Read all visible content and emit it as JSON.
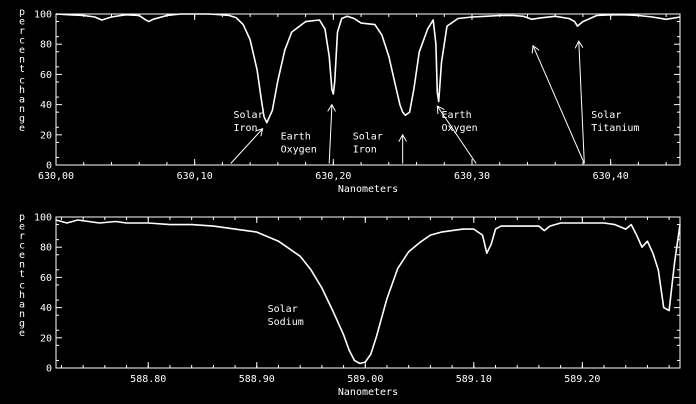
{
  "colors": {
    "background": "#000000",
    "foreground": "#ffffff"
  },
  "chart_data": [
    {
      "type": "line",
      "xlabel": "Nanometers",
      "ylabel_lines": [
        "Percent",
        "Change"
      ],
      "xlim": [
        630.0,
        630.45
      ],
      "ylim": [
        0,
        100
      ],
      "x_ticks": [
        630.0,
        630.1,
        630.2,
        630.3,
        630.4
      ],
      "x_tick_labels": [
        "630,00",
        "630,10",
        "630,20",
        "630,30",
        "630,40"
      ],
      "y_ticks": [
        0,
        20,
        40,
        60,
        80,
        100
      ],
      "y_tick_labels": [
        "0",
        "20",
        "40",
        "60",
        "80",
        "100"
      ],
      "series": [
        {
          "x": [
            630.0,
            630.01,
            630.02,
            630.028,
            630.033,
            630.04,
            630.05,
            630.06,
            630.064,
            630.067,
            630.07,
            630.08,
            630.09,
            630.1,
            630.11,
            630.12,
            630.125,
            630.13,
            630.135,
            630.14,
            630.145,
            630.148,
            630.15,
            630.152,
            630.156,
            630.16,
            630.165,
            630.17,
            630.18,
            630.19,
            630.194,
            630.197,
            630.199,
            630.2,
            630.201,
            630.203,
            630.206,
            630.21,
            630.215,
            630.22,
            630.23,
            630.235,
            630.24,
            630.245,
            630.248,
            630.25,
            630.252,
            630.255,
            630.258,
            630.262,
            630.268,
            630.272,
            630.274,
            630.275,
            630.276,
            630.278,
            630.282,
            630.29,
            630.3,
            630.31,
            630.32,
            630.33,
            630.337,
            630.343,
            630.35,
            630.36,
            630.37,
            630.374,
            630.376,
            630.38,
            630.39,
            630.4,
            630.41,
            630.42,
            630.43,
            630.44,
            630.45
          ],
          "y": [
            100,
            99.5,
            99,
            98,
            96,
            98,
            99.5,
            99,
            96.5,
            95,
            96.5,
            99,
            100,
            100,
            100,
            99.5,
            99,
            97.5,
            93,
            83,
            63,
            44,
            32,
            28,
            36,
            56,
            76,
            88,
            95,
            96,
            90,
            72,
            50,
            47,
            55,
            88,
            97,
            98.5,
            97,
            94,
            93,
            86,
            72,
            52,
            40,
            35,
            33,
            35,
            50,
            75,
            90,
            96,
            80,
            48,
            42,
            68,
            92,
            97,
            98,
            98.5,
            99,
            99,
            98.5,
            96.5,
            97.5,
            98.5,
            97,
            95,
            92,
            95,
            99,
            99.5,
            99.5,
            99,
            98,
            96.5,
            98
          ]
        }
      ],
      "annotations": [
        {
          "lines": [
            "Solar",
            "Iron"
          ],
          "x": 630.128,
          "y": 31,
          "arrow_from": [
            630.126,
            1
          ],
          "arrow_to": [
            630.149,
            24
          ]
        },
        {
          "lines": [
            "Earth",
            "Oxygen"
          ],
          "x": 630.162,
          "y": 17,
          "arrow_from": [
            630.197,
            1
          ],
          "arrow_to": [
            630.199,
            40
          ]
        },
        {
          "lines": [
            "Solar",
            "Iron"
          ],
          "x": 630.214,
          "y": 17,
          "arrow_from": [
            630.25,
            1
          ],
          "arrow_to": [
            630.25,
            20
          ]
        },
        {
          "lines": [
            "Earth",
            "Oxygen"
          ],
          "x": 630.278,
          "y": 31,
          "arrow_from": [
            630.303,
            1
          ],
          "arrow_to": [
            630.275,
            39
          ]
        },
        {
          "lines": [
            "Solar",
            "Titanium"
          ],
          "x": 630.386,
          "y": 31,
          "arrow_from": [
            630.381,
            1
          ],
          "arrow_to": [
            630.344,
            79
          ]
        },
        {
          "lines": [],
          "arrow_from": [
            630.381,
            1
          ],
          "arrow_to": [
            630.377,
            82
          ]
        }
      ]
    },
    {
      "type": "line",
      "xlabel": "Nanometers",
      "ylabel_lines": [
        "Percent",
        "Change"
      ],
      "xlim": [
        588.715,
        589.29
      ],
      "ylim": [
        0,
        100
      ],
      "x_ticks": [
        588.8,
        588.9,
        589.0,
        589.1,
        589.2
      ],
      "x_tick_labels": [
        "588.80",
        "588.90",
        "589.00",
        "589.10",
        "589.20"
      ],
      "y_ticks": [
        0,
        20,
        40,
        60,
        80,
        100
      ],
      "y_tick_labels": [
        "0",
        "20",
        "40",
        "60",
        "80",
        "100"
      ],
      "series": [
        {
          "x": [
            588.715,
            588.725,
            588.735,
            588.745,
            588.755,
            588.77,
            588.78,
            588.8,
            588.82,
            588.84,
            588.86,
            588.87,
            588.88,
            588.9,
            588.92,
            588.94,
            588.95,
            588.96,
            588.97,
            588.98,
            588.985,
            588.99,
            588.995,
            589.0,
            589.005,
            589.01,
            589.02,
            589.03,
            589.04,
            589.05,
            589.06,
            589.07,
            589.08,
            589.09,
            589.1,
            589.108,
            589.112,
            589.116,
            589.12,
            589.125,
            589.14,
            589.16,
            589.165,
            589.17,
            589.18,
            589.2,
            589.22,
            589.23,
            589.24,
            589.245,
            589.25,
            589.255,
            589.26,
            589.265,
            589.27,
            589.275,
            589.28,
            589.285,
            589.29
          ],
          "y": [
            98,
            96,
            98,
            97,
            96,
            97,
            96,
            96,
            95,
            95,
            94,
            93,
            92,
            90,
            84,
            74,
            65,
            53,
            38,
            22,
            12,
            5,
            3,
            4,
            9,
            20,
            46,
            66,
            77,
            83,
            88,
            90,
            91,
            92,
            92,
            88,
            76,
            82,
            92,
            94,
            94,
            94,
            91,
            94,
            96,
            96,
            96,
            95,
            92,
            95,
            88,
            80,
            84,
            76,
            65,
            40,
            38,
            70,
            95
          ]
        }
      ],
      "annotations": [
        {
          "lines": [
            "Solar",
            "Sodium"
          ],
          "x": 588.91,
          "y": 37
        }
      ]
    }
  ]
}
